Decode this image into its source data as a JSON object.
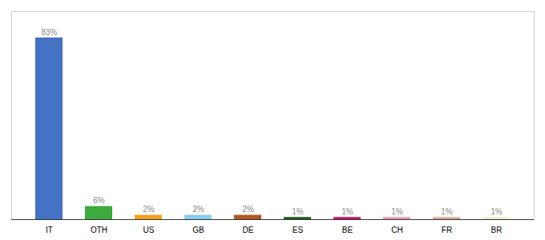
{
  "chart_data": {
    "type": "bar",
    "categories": [
      "IT",
      "OTH",
      "US",
      "GB",
      "DE",
      "ES",
      "BE",
      "CH",
      "FR",
      "BR"
    ],
    "values": [
      83,
      6,
      2,
      2,
      2,
      1,
      1,
      1,
      1,
      1
    ],
    "value_labels": [
      "83%",
      "6%",
      "2%",
      "2%",
      "2%",
      "1%",
      "1%",
      "1%",
      "1%",
      "1%"
    ],
    "colors": [
      "#4472c4",
      "#3daa3d",
      "#f0a020",
      "#88ccee",
      "#b05820",
      "#1a5c1a",
      "#cc1166",
      "#ee99aa",
      "#ddaa99",
      "#eeeecc"
    ],
    "ylim": [
      0,
      95
    ],
    "data_labels": true,
    "tick_labels": "x",
    "grid": false
  }
}
